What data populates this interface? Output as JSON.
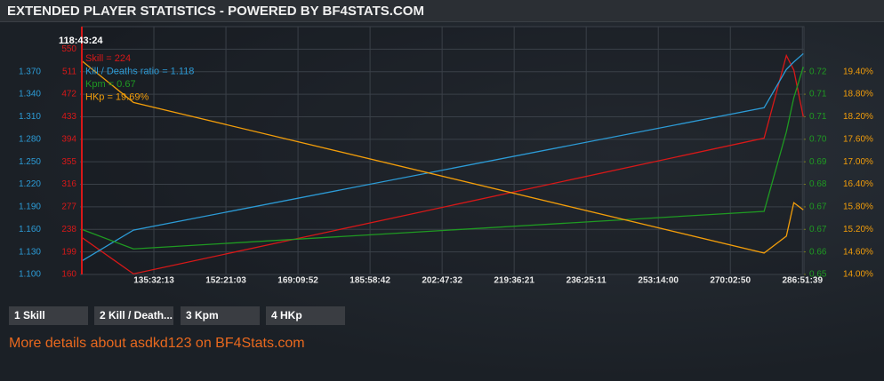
{
  "header": {
    "title": "EXTENDED PLAYER STATISTICS - POWERED BY BF4STATS.COM"
  },
  "chart_data": {
    "type": "line",
    "x": [
      427404,
      470800,
      1000522,
      1019227,
      1025464,
      1033437
    ],
    "xlim": [
      427404,
      1034000
    ],
    "xticks": [
      {
        "value": 487933,
        "label": "135:32:13"
      },
      {
        "value": 548463,
        "label": "152:21:03"
      },
      {
        "value": 608992,
        "label": "169:09:52"
      },
      {
        "value": 669522,
        "label": "185:58:42"
      },
      {
        "value": 730052,
        "label": "202:47:32"
      },
      {
        "value": 790581,
        "label": "219:36:21"
      },
      {
        "value": 851111,
        "label": "236:25:11"
      },
      {
        "value": 911640,
        "label": "253:14:00"
      },
      {
        "value": 972170,
        "label": "270:02:50"
      },
      {
        "value": 1032699,
        "label": "286:51:39"
      }
    ],
    "grid": true,
    "series": [
      {
        "name": "Skill",
        "color": "#d81818",
        "values": [
          224,
          161,
          396,
          539,
          514,
          433
        ],
        "ylim": [
          160,
          589
        ],
        "yticks": [
          160,
          199,
          238,
          277,
          316,
          355,
          394,
          433,
          472,
          511,
          550
        ]
      },
      {
        "name": "Kill / Deaths ratio",
        "color": "#2c9bd6",
        "values": [
          1.118,
          1.159,
          1.322,
          1.373,
          1.383,
          1.394
        ],
        "ylim": [
          1.1,
          1.43
        ],
        "yticks": [
          {
            "value": 1.1,
            "label": "1.100"
          },
          {
            "value": 1.13,
            "label": "1.130"
          },
          {
            "value": 1.16,
            "label": "1.160"
          },
          {
            "value": 1.19,
            "label": "1.190"
          },
          {
            "value": 1.22,
            "label": "1.220"
          },
          {
            "value": 1.25,
            "label": "1.250"
          },
          {
            "value": 1.28,
            "label": "1.280"
          },
          {
            "value": 1.31,
            "label": "1.310"
          },
          {
            "value": 1.34,
            "label": "1.340"
          },
          {
            "value": 1.37,
            "label": "1.370"
          }
        ]
      },
      {
        "name": "Kpm",
        "color": "#1f9a22",
        "values": [
          0.6675,
          0.661,
          0.6735,
          0.7,
          0.7113,
          0.7216
        ],
        "ylim": [
          0.6525,
          0.735
        ],
        "yticks": [
          {
            "value": 0.6525,
            "label": "0.65"
          },
          0.66,
          {
            "value": 0.6675,
            "label": "0.67"
          },
          {
            "value": 0.675,
            "label": "0.67"
          },
          {
            "value": 0.6825,
            "label": "0.68"
          },
          0.69,
          {
            "value": 0.6975,
            "label": "0.70"
          },
          {
            "value": 0.705,
            "label": "0.71"
          },
          {
            "value": 0.7125,
            "label": "0.71"
          },
          0.72
        ]
      },
      {
        "name": "HKp",
        "color": "#f29d0a",
        "values": [
          19.69,
          18.58,
          14.57,
          15.02,
          15.91,
          15.72
        ],
        "ylim": [
          14,
          20.6
        ],
        "yticks": [
          {
            "value": 14,
            "label": "14.00%"
          },
          {
            "value": 14.6,
            "label": "14.60%"
          },
          {
            "value": 15.2,
            "label": "15.20%"
          },
          {
            "value": 15.8,
            "label": "15.80%"
          },
          {
            "value": 16.4,
            "label": "16.40%"
          },
          {
            "value": 17,
            "label": "17.00%"
          },
          {
            "value": 17.6,
            "label": "17.60%"
          },
          {
            "value": 18.2,
            "label": "18.20%"
          },
          {
            "value": 18.8,
            "label": "18.80%"
          },
          {
            "value": 19.4,
            "label": "19.40%"
          }
        ]
      }
    ],
    "tooltip": {
      "label": "118:43:24",
      "lines": [
        "Skill = 224",
        "Kill / Deaths ratio = 1.118",
        "Kpm = 0.67",
        "HKp = 19.69%"
      ]
    }
  },
  "tabs": [
    "1 Skill",
    "2 Kill / Death...",
    "3 Kpm",
    "4 HKp"
  ],
  "link": "More details about asdkd123 on BF4Stats.com"
}
